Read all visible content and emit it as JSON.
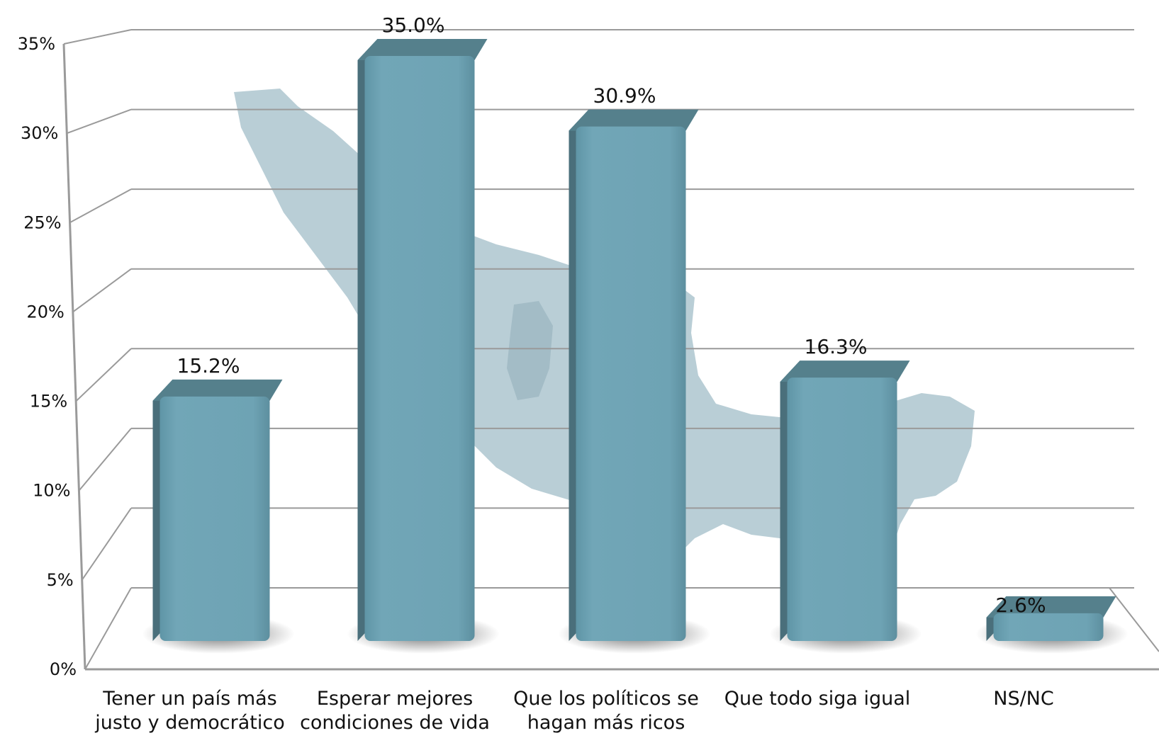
{
  "chart_data": {
    "type": "bar",
    "categories": [
      [
        "Tener un país más",
        "justo y democrático"
      ],
      [
        "Esperar mejores",
        "condiciones de vida"
      ],
      [
        "Que los políticos se",
        "hagan más ricos"
      ],
      [
        "Que todo siga igual"
      ],
      [
        "NS/NC"
      ]
    ],
    "values": [
      15.2,
      35.0,
      30.9,
      16.3,
      2.6
    ],
    "data_labels": [
      "15.2%",
      "35.0%",
      "30.9%",
      "16.3%",
      "2.6%"
    ],
    "y_ticks": [
      "0%",
      "5%",
      "10%",
      "15%",
      "20%",
      "25%",
      "30%",
      "35%"
    ],
    "ylim": [
      0,
      35
    ],
    "grid": true,
    "colors": {
      "bar_front": "#6ea3b4",
      "bar_side": "#4a6f7b",
      "bar_top": "#55808c",
      "grid": "#9a9a9a",
      "map": "#b9ced6",
      "text": "#111111"
    }
  }
}
